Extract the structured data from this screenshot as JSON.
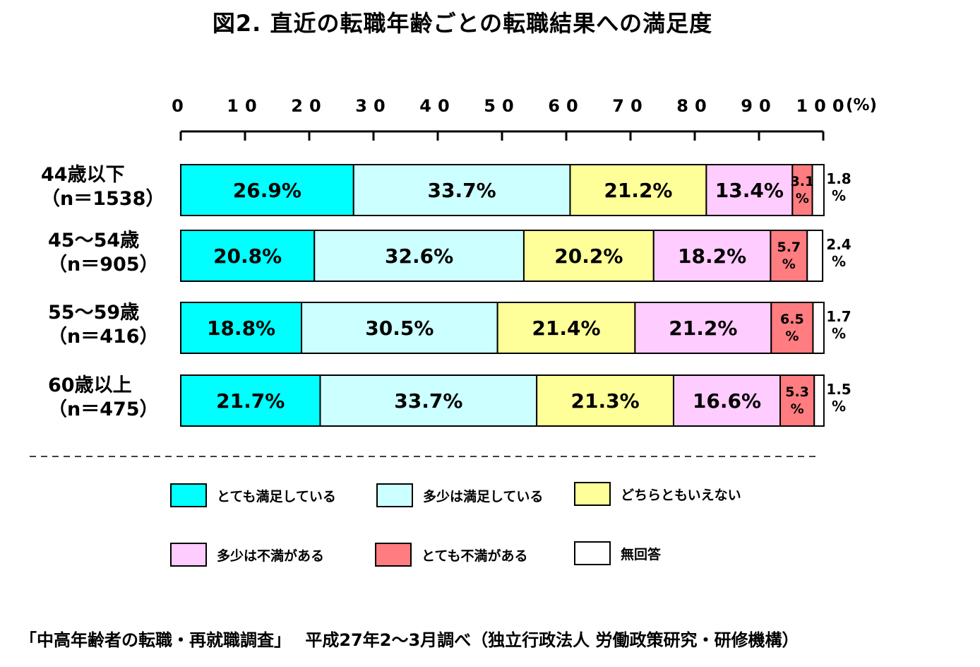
{
  "title": "図2.  直近の転職年齢ごとの転職結果への満足度",
  "source": "「中高年齢者の転職・再就職調査」　 平成27年2～3月調べ（独立行政法人 労働政策研究・研修機構）",
  "chart_data": {
    "type": "bar",
    "orientation": "horizontal-stacked-100",
    "x_ticks": [
      "0",
      "10",
      "20",
      "30",
      "40",
      "50",
      "60",
      "70",
      "80",
      "90",
      "100"
    ],
    "x_unit": "(%)",
    "xlim": [
      0,
      100
    ],
    "categories": [
      {
        "line1": "44歳以下",
        "line2": "（n＝1538）"
      },
      {
        "line1": "45～54歳",
        "line2": "（n＝905）"
      },
      {
        "line1": "55～59歳",
        "line2": "（n＝416）"
      },
      {
        "line1": "60歳以上",
        "line2": "（n＝475）"
      }
    ],
    "series": [
      {
        "name": "とても満足している",
        "color": "#00FFFF",
        "values": [
          26.9,
          20.8,
          18.8,
          21.7
        ]
      },
      {
        "name": "多少は満足している",
        "color": "#CCFFFF",
        "values": [
          33.7,
          32.6,
          30.5,
          33.7
        ]
      },
      {
        "name": "どちらともいえない",
        "color": "#FFFF99",
        "values": [
          21.2,
          20.2,
          21.4,
          21.3
        ]
      },
      {
        "name": "多少は不満がある",
        "color": "#FFCCFF",
        "values": [
          13.4,
          18.2,
          21.2,
          16.6
        ]
      },
      {
        "name": "とても不満がある",
        "color": "#FF7C80",
        "values": [
          3.1,
          5.7,
          6.5,
          5.3
        ]
      },
      {
        "name": "無回答",
        "color": "#FFFFFF",
        "values": [
          1.8,
          2.4,
          1.7,
          1.5
        ]
      }
    ],
    "legend_position": "bottom",
    "grid": false
  }
}
